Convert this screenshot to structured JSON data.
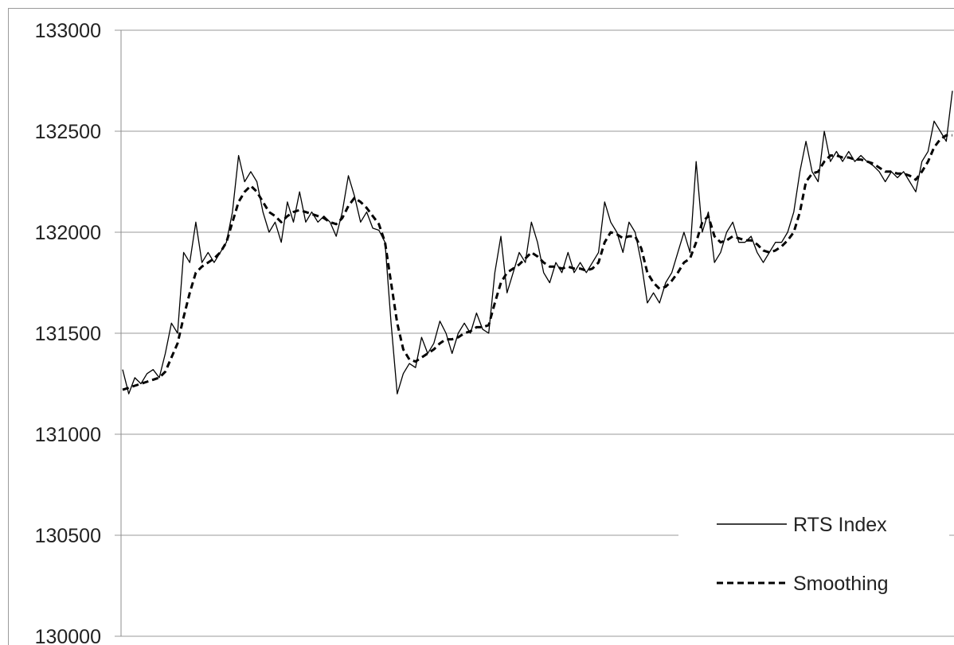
{
  "chart_data": {
    "type": "line",
    "title": "",
    "xlabel": "",
    "ylabel": "",
    "ylim": [
      130000,
      133000
    ],
    "yticks": [
      "130000",
      "130500",
      "131000",
      "131500",
      "132000",
      "132500",
      "133000"
    ],
    "grid": true,
    "legend_position": "bottom-right",
    "series": [
      {
        "name": "RTS Index",
        "style": "solid",
        "color": "#000000",
        "values": [
          131320,
          131200,
          131280,
          131250,
          131300,
          131320,
          131280,
          131400,
          131550,
          131500,
          131900,
          131850,
          132050,
          131850,
          131900,
          131850,
          131900,
          131950,
          132100,
          132380,
          132250,
          132300,
          132250,
          132100,
          132000,
          132050,
          131950,
          132150,
          132050,
          132200,
          132050,
          132100,
          132050,
          132080,
          132050,
          131980,
          132100,
          132280,
          132180,
          132050,
          132100,
          132020,
          132010,
          131950,
          131550,
          131200,
          131300,
          131350,
          131330,
          131480,
          131400,
          131450,
          131560,
          131500,
          131400,
          131500,
          131550,
          131500,
          131600,
          131520,
          131500,
          131800,
          131980,
          131700,
          131800,
          131900,
          131850,
          132050,
          131950,
          131800,
          131750,
          131850,
          131800,
          131900,
          131800,
          131850,
          131800,
          131850,
          131900,
          132150,
          132050,
          132000,
          131900,
          132050,
          132000,
          131850,
          131650,
          131700,
          131650,
          131750,
          131800,
          131900,
          132000,
          131900,
          132350,
          132000,
          132100,
          131850,
          131900,
          132000,
          132050,
          131950,
          131950,
          131980,
          131900,
          131850,
          131900,
          131950,
          131950,
          132000,
          132100,
          132300,
          132450,
          132300,
          132250,
          132500,
          132350,
          132400,
          132350,
          132400,
          132350,
          132380,
          132350,
          132330,
          132300,
          132250,
          132300,
          132270,
          132300,
          132250,
          132200,
          132350,
          132400,
          132550,
          132500,
          132450,
          132700
        ]
      },
      {
        "name": "Smoothing",
        "style": "dashed",
        "color": "#000000",
        "values": [
          131220,
          131230,
          131240,
          131250,
          131260,
          131270,
          131280,
          131310,
          131380,
          131450,
          131580,
          131700,
          131800,
          131830,
          131850,
          131870,
          131900,
          131950,
          132050,
          132150,
          132200,
          132230,
          132200,
          132150,
          132100,
          132080,
          132050,
          132080,
          132100,
          132110,
          132100,
          132090,
          132080,
          132070,
          132050,
          132040,
          132070,
          132130,
          132170,
          132150,
          132120,
          132080,
          132040,
          131950,
          131750,
          131550,
          131420,
          131370,
          131360,
          131380,
          131400,
          131420,
          131450,
          131470,
          131470,
          131480,
          131500,
          131510,
          131530,
          131530,
          131540,
          131650,
          131750,
          131800,
          131820,
          131840,
          131870,
          131900,
          131880,
          131850,
          131830,
          131830,
          131820,
          131830,
          131820,
          131820,
          131810,
          131820,
          131850,
          131950,
          132000,
          131990,
          131970,
          131980,
          131980,
          131920,
          131800,
          131750,
          131720,
          131730,
          131760,
          131800,
          131850,
          131870,
          131950,
          132050,
          132080,
          131980,
          131950,
          131960,
          131980,
          131970,
          131960,
          131960,
          131940,
          131910,
          131900,
          131910,
          131930,
          131960,
          132000,
          132100,
          132250,
          132290,
          132300,
          132350,
          132380,
          132380,
          132370,
          132370,
          132360,
          132360,
          132350,
          132340,
          132320,
          132300,
          132300,
          132290,
          132290,
          132280,
          132260,
          132300,
          132350,
          132420,
          132460,
          132480,
          132480
        ]
      }
    ]
  }
}
